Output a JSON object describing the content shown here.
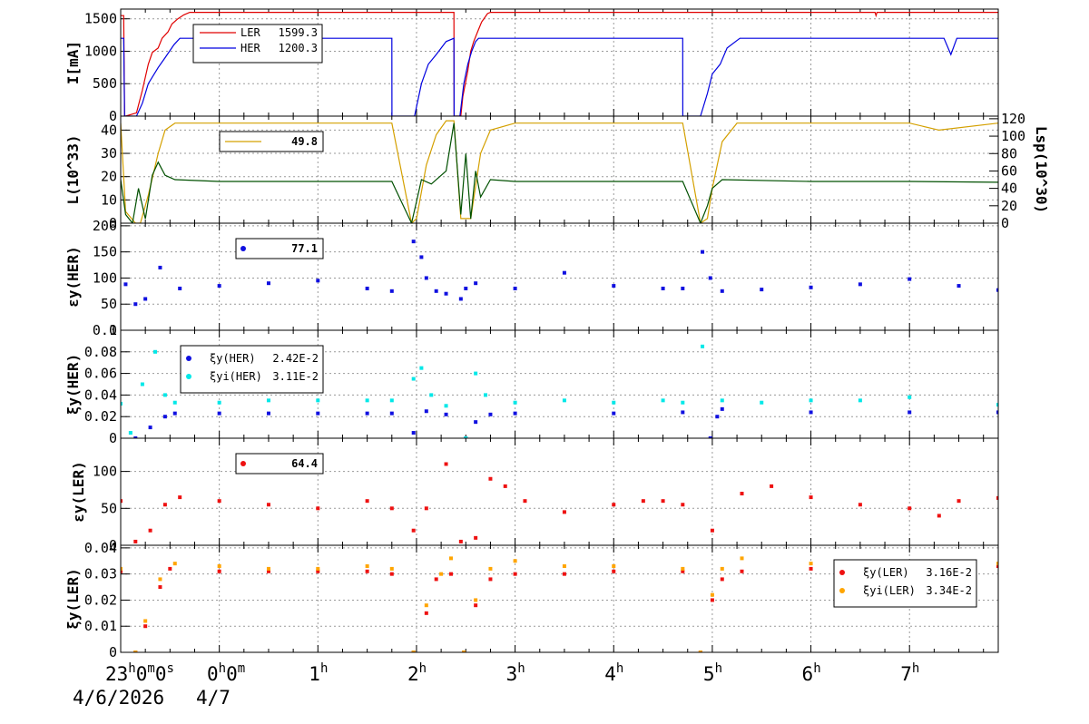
{
  "time_axis": {
    "start_label": "23",
    "start_unit": "h",
    "start_min": "0",
    "start_min_unit": "m",
    "start_sec": "0",
    "start_sec_unit": "s",
    "midnight_label": "0",
    "midnight_unit": "h",
    "midnight_min": "0",
    "midnight_min_unit": "m",
    "hours": [
      "1",
      "2",
      "3",
      "4",
      "5",
      "6",
      "7"
    ],
    "hour_unit": "h",
    "date_label": "4/6/2026",
    "date2_label": "4/7",
    "range_hours": [
      -1.0,
      7.9
    ]
  },
  "colors": {
    "ler": "#e00000",
    "her": "#0000e0",
    "lum": "#d4a000",
    "lsp": "#005000",
    "cyan": "#00e8e8",
    "orange": "#ffa500",
    "red": "#ee1111",
    "blue": "#1010e0",
    "grid": "#9a9a9a"
  },
  "chart_data": [
    {
      "type": "line",
      "panel": "currents",
      "ylabel": "I[mA]",
      "ylim": [
        0,
        1650
      ],
      "yticks": [
        0,
        500,
        1000,
        1500
      ],
      "legend": [
        {
          "name": "LER",
          "value": "1599.3",
          "color": "#e00000"
        },
        {
          "name": "HER",
          "value": "1200.3",
          "color": "#0000e0"
        }
      ],
      "series": [
        {
          "name": "LER",
          "x": [
            -1.0,
            -0.97,
            -0.96,
            -0.95,
            -0.84,
            -0.78,
            -0.72,
            -0.68,
            -0.62,
            -0.58,
            -0.52,
            -0.48,
            -0.42,
            -0.36,
            -0.3,
            -0.25,
            0.0,
            0.5,
            1.0,
            1.5,
            2.0,
            2.38,
            2.381,
            2.45,
            2.47,
            2.52,
            2.55,
            2.58,
            2.62,
            2.66,
            2.72,
            2.75,
            3.0,
            4.0,
            5.0,
            6.0,
            6.65,
            6.66,
            6.67,
            7.0,
            7.9
          ],
          "y": [
            1550,
            1550,
            0,
            0,
            50,
            400,
            800,
            980,
            1050,
            1200,
            1300,
            1420,
            1500,
            1560,
            1599,
            1599,
            1599,
            1599,
            1599,
            1599,
            1599,
            1599,
            0,
            0,
            300,
            700,
            1000,
            1150,
            1300,
            1450,
            1580,
            1599,
            1599,
            1599,
            1599,
            1599,
            1599,
            1550,
            1599,
            1599,
            1599
          ]
        },
        {
          "name": "HER",
          "x": [
            -1.0,
            -0.97,
            -0.96,
            -0.95,
            -0.84,
            -0.78,
            -0.72,
            -0.62,
            -0.55,
            -0.46,
            -0.4,
            -0.35,
            0.5,
            1.0,
            1.5,
            1.75,
            1.751,
            1.98,
            2.05,
            2.12,
            2.2,
            2.3,
            2.38,
            2.381,
            2.44,
            2.48,
            2.52,
            2.56,
            2.6,
            2.63,
            3.0,
            4.0,
            4.7,
            4.701,
            4.88,
            4.95,
            5.0,
            5.08,
            5.15,
            5.28,
            6.0,
            7.0,
            7.35,
            7.42,
            7.48,
            7.9
          ],
          "y": [
            1200,
            1200,
            0,
            0,
            0,
            200,
            500,
            750,
            900,
            1100,
            1200,
            1200,
            1200,
            1200,
            1200,
            1200,
            0,
            0,
            500,
            800,
            950,
            1150,
            1200,
            0,
            0,
            500,
            800,
            1000,
            1150,
            1200,
            1200,
            1200,
            1200,
            0,
            0,
            350,
            650,
            800,
            1050,
            1200,
            1200,
            1200,
            1200,
            950,
            1200,
            1200
          ]
        }
      ]
    },
    {
      "type": "line",
      "panel": "luminosity",
      "ylabel": "L(10^33)",
      "ylabel_right": "Lsp(10^30)",
      "ylim": [
        0,
        46
      ],
      "yticks": [
        0,
        10,
        20,
        30,
        40
      ],
      "ylim_right": [
        0,
        123
      ],
      "yticks_right": [
        0,
        20,
        40,
        60,
        80,
        100,
        120
      ],
      "legend_value": "49.8",
      "series": [
        {
          "name": "L",
          "x": [
            -1.0,
            -0.95,
            -0.85,
            -0.8,
            -0.72,
            -0.62,
            -0.55,
            -0.45,
            0.0,
            1.0,
            1.75,
            1.95,
            2.0,
            2.1,
            2.2,
            2.3,
            2.38,
            2.45,
            2.55,
            2.65,
            2.75,
            3.0,
            4.0,
            4.7,
            4.88,
            4.95,
            5.0,
            5.1,
            5.25,
            6.0,
            7.0,
            7.3,
            7.9
          ],
          "y": [
            43,
            5,
            0,
            0,
            12,
            30,
            40,
            43,
            43,
            43,
            43,
            0,
            2,
            25,
            38,
            44,
            44,
            2,
            2,
            30,
            40,
            43,
            43,
            43,
            0,
            2,
            15,
            35,
            43,
            43,
            43,
            40,
            43
          ]
        },
        {
          "name": "Lsp",
          "x": [
            -1.0,
            -0.95,
            -0.88,
            -0.82,
            -0.75,
            -0.68,
            -0.62,
            -0.55,
            -0.45,
            0.0,
            1.0,
            1.75,
            1.95,
            2.0,
            2.05,
            2.15,
            2.3,
            2.38,
            2.45,
            2.5,
            2.55,
            2.6,
            2.65,
            2.75,
            3.0,
            4.0,
            4.7,
            4.88,
            4.95,
            5.0,
            5.1,
            6.0,
            7.0,
            7.9
          ],
          "y": [
            50,
            10,
            0,
            40,
            5,
            55,
            70,
            55,
            50,
            48,
            48,
            48,
            0,
            25,
            50,
            45,
            60,
            115,
            10,
            80,
            5,
            60,
            30,
            50,
            48,
            48,
            48,
            0,
            20,
            40,
            50,
            48,
            48,
            47
          ]
        }
      ]
    },
    {
      "type": "scatter",
      "panel": "emittance_her",
      "ylabel": "εy(HER)",
      "ylim": [
        0,
        205
      ],
      "yticks": [
        0,
        50,
        100,
        150,
        200
      ],
      "legend_value": "77.1",
      "series": [
        {
          "name": "εy(HER)",
          "color": "#1010e0",
          "x": [
            -0.95,
            -0.85,
            -0.75,
            -0.6,
            -0.4,
            0.0,
            0.5,
            1.0,
            1.5,
            1.75,
            1.97,
            2.05,
            2.1,
            2.2,
            2.3,
            2.45,
            2.5,
            2.6,
            3.0,
            3.5,
            4.0,
            4.5,
            4.7,
            4.9,
            4.98,
            5.1,
            5.5,
            6.0,
            6.5,
            7.0,
            7.5,
            7.9
          ],
          "y": [
            88,
            50,
            60,
            120,
            80,
            85,
            90,
            95,
            80,
            75,
            170,
            140,
            100,
            75,
            70,
            60,
            80,
            90,
            80,
            110,
            85,
            80,
            80,
            150,
            100,
            75,
            78,
            82,
            88,
            98,
            85,
            77
          ]
        }
      ]
    },
    {
      "type": "scatter",
      "panel": "tune_shift_her",
      "ylabel": "ξy(HER)",
      "ylim": [
        0,
        0.1
      ],
      "yticks": [
        0,
        0.02,
        0.04,
        0.06,
        0.08,
        0.1
      ],
      "legend": [
        {
          "name": "ξy(HER)",
          "value": "2.42E-2",
          "color": "#1010e0"
        },
        {
          "name": "ξyi(HER)",
          "value": "3.11E-2",
          "color": "#00e8e8"
        }
      ],
      "series": [
        {
          "name": "ξy(HER)",
          "color": "#1010e0",
          "x": [
            -0.85,
            -0.7,
            -0.55,
            -0.45,
            0.0,
            0.5,
            1.0,
            1.5,
            1.75,
            1.97,
            2.1,
            2.3,
            2.5,
            2.6,
            2.75,
            3.0,
            4.0,
            4.7,
            4.98,
            5.05,
            5.1,
            6.0,
            7.0,
            7.9
          ],
          "y": [
            0.0,
            0.01,
            0.02,
            0.023,
            0.023,
            0.023,
            0.023,
            0.023,
            0.023,
            0.005,
            0.025,
            0.022,
            0.0,
            0.015,
            0.022,
            0.023,
            0.023,
            0.024,
            0.0,
            0.02,
            0.027,
            0.024,
            0.024,
            0.024
          ]
        },
        {
          "name": "ξyi(HER)",
          "color": "#00e8e8",
          "x": [
            -1.0,
            -0.9,
            -0.78,
            -0.65,
            -0.55,
            -0.45,
            0.0,
            0.5,
            1.0,
            1.5,
            1.75,
            1.97,
            2.05,
            2.15,
            2.3,
            2.5,
            2.6,
            2.7,
            3.0,
            3.5,
            4.0,
            4.5,
            4.7,
            4.9,
            5.1,
            5.5,
            6.0,
            6.5,
            7.0,
            7.9
          ],
          "y": [
            0.032,
            0.005,
            0.05,
            0.08,
            0.04,
            0.033,
            0.033,
            0.035,
            0.035,
            0.035,
            0.035,
            0.055,
            0.065,
            0.04,
            0.03,
            0.0,
            0.06,
            0.04,
            0.033,
            0.035,
            0.033,
            0.035,
            0.033,
            0.085,
            0.035,
            0.033,
            0.035,
            0.035,
            0.038,
            0.031
          ]
        }
      ]
    },
    {
      "type": "scatter",
      "panel": "emittance_ler",
      "ylabel": "εy(LER)",
      "ylim": [
        0,
        145
      ],
      "yticks": [
        0,
        50,
        100
      ],
      "legend_value": "64.4",
      "series": [
        {
          "name": "εy(LER)",
          "color": "#ee1111",
          "x": [
            -1.0,
            -0.85,
            -0.7,
            -0.55,
            -0.4,
            0.0,
            0.5,
            1.0,
            1.5,
            1.75,
            1.97,
            2.1,
            2.3,
            2.45,
            2.6,
            2.75,
            2.9,
            3.1,
            3.5,
            4.0,
            4.3,
            4.5,
            4.7,
            5.0,
            5.3,
            5.6,
            6.0,
            6.5,
            7.0,
            7.3,
            7.5,
            7.9
          ],
          "y": [
            60,
            5,
            20,
            55,
            65,
            60,
            55,
            50,
            60,
            50,
            20,
            50,
            110,
            5,
            10,
            90,
            80,
            60,
            45,
            55,
            60,
            60,
            55,
            20,
            70,
            80,
            65,
            55,
            50,
            40,
            60,
            64
          ]
        }
      ]
    },
    {
      "type": "scatter",
      "panel": "tune_shift_ler",
      "ylabel": "ξy(LER)",
      "ylim": [
        0,
        0.041
      ],
      "yticks": [
        0,
        0.01,
        0.02,
        0.03,
        0.04
      ],
      "legend": [
        {
          "name": "ξy(LER)",
          "value": "3.16E-2",
          "color": "#ee1111"
        },
        {
          "name": "ξyi(LER)",
          "value": "3.34E-2",
          "color": "#ffa500"
        }
      ],
      "series": [
        {
          "name": "ξy(LER)",
          "color": "#ee1111",
          "x": [
            -1.0,
            -0.85,
            -0.75,
            -0.6,
            -0.5,
            0.0,
            0.5,
            1.0,
            1.5,
            1.75,
            1.97,
            2.1,
            2.2,
            2.35,
            2.48,
            2.6,
            2.75,
            3.0,
            3.5,
            4.0,
            4.7,
            4.88,
            5.0,
            5.1,
            5.3,
            6.0,
            7.0,
            7.9
          ],
          "y": [
            0.031,
            0.0,
            0.01,
            0.025,
            0.032,
            0.031,
            0.031,
            0.031,
            0.031,
            0.03,
            0.0,
            0.015,
            0.028,
            0.03,
            0.0,
            0.018,
            0.028,
            0.03,
            0.03,
            0.031,
            0.031,
            0.0,
            0.02,
            0.028,
            0.031,
            0.032,
            0.032,
            0.033
          ]
        },
        {
          "name": "ξyi(LER)",
          "color": "#ffa500",
          "x": [
            -1.0,
            -0.85,
            -0.75,
            -0.6,
            -0.45,
            0.0,
            0.5,
            1.0,
            1.5,
            1.75,
            1.97,
            2.1,
            2.25,
            2.35,
            2.48,
            2.6,
            2.75,
            3.0,
            3.5,
            4.0,
            4.7,
            4.88,
            5.0,
            5.1,
            5.3,
            6.0,
            7.0,
            7.9
          ],
          "y": [
            0.032,
            0.0,
            0.012,
            0.028,
            0.034,
            0.033,
            0.032,
            0.032,
            0.033,
            0.032,
            0.0,
            0.018,
            0.03,
            0.036,
            0.0,
            0.02,
            0.032,
            0.035,
            0.033,
            0.033,
            0.032,
            0.0,
            0.022,
            0.032,
            0.036,
            0.034,
            0.034,
            0.034
          ]
        }
      ]
    }
  ]
}
